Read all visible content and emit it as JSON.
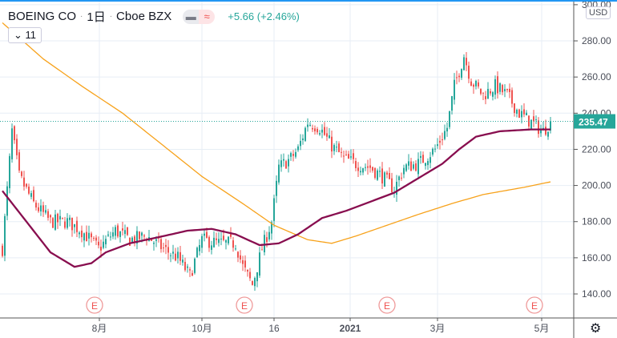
{
  "header": {
    "symbol": "BOEING CO",
    "interval": "1日",
    "exchange": "Cboe BZX",
    "change": "+5.66 (+2.46%)",
    "indicator_count": "11",
    "currency": "USD"
  },
  "colors": {
    "up": "#26a69a",
    "down": "#ef5350",
    "ma_fast": "#880e4f",
    "ma_slow": "#f7a21b",
    "grid": "#e7eef5"
  },
  "chart_data": {
    "type": "candlestick",
    "last_price": "235.47",
    "ylim": [
      140,
      300
    ],
    "y_ticks": [
      "300.00",
      "280.00",
      "260.00",
      "240.00",
      "220.00",
      "200.00",
      "180.00",
      "160.00",
      "140.00"
    ],
    "x_ticks": [
      "8月",
      "10月",
      "16",
      "2021",
      "3月",
      "5月"
    ],
    "earnings_markers": [
      "E",
      "E",
      "E",
      "E"
    ],
    "close_waypoints": [
      [
        0,
        165
      ],
      [
        4,
        230
      ],
      [
        7,
        205
      ],
      [
        13,
        190
      ],
      [
        20,
        180
      ],
      [
        27,
        180
      ],
      [
        33,
        175
      ],
      [
        40,
        165
      ],
      [
        47,
        175
      ],
      [
        53,
        170
      ],
      [
        60,
        172
      ],
      [
        67,
        165
      ],
      [
        73,
        160
      ],
      [
        78,
        150
      ],
      [
        83,
        170
      ],
      [
        90,
        168
      ],
      [
        97,
        168
      ],
      [
        100,
        155
      ],
      [
        104,
        145
      ],
      [
        108,
        165
      ],
      [
        112,
        180
      ],
      [
        115,
        210
      ],
      [
        120,
        215
      ],
      [
        123,
        220
      ],
      [
        127,
        235
      ],
      [
        132,
        232
      ],
      [
        137,
        222
      ],
      [
        142,
        215
      ],
      [
        147,
        212
      ],
      [
        153,
        210
      ],
      [
        158,
        205
      ],
      [
        163,
        198
      ],
      [
        167,
        210
      ],
      [
        173,
        212
      ],
      [
        180,
        220
      ],
      [
        185,
        232
      ],
      [
        188,
        255
      ],
      [
        192,
        272
      ],
      [
        195,
        258
      ],
      [
        200,
        250
      ],
      [
        205,
        255
      ],
      [
        210,
        250
      ],
      [
        215,
        240
      ],
      [
        220,
        235
      ],
      [
        225,
        230
      ],
      [
        228,
        235.47
      ]
    ],
    "ma_fast": [
      [
        0,
        197
      ],
      [
        10,
        180
      ],
      [
        20,
        163
      ],
      [
        30,
        155
      ],
      [
        37,
        157
      ],
      [
        43,
        163
      ],
      [
        53,
        168
      ],
      [
        67,
        172
      ],
      [
        77,
        175
      ],
      [
        87,
        176
      ],
      [
        97,
        173
      ],
      [
        107,
        167
      ],
      [
        115,
        168
      ],
      [
        123,
        173
      ],
      [
        133,
        182
      ],
      [
        143,
        186
      ],
      [
        153,
        191
      ],
      [
        163,
        196
      ],
      [
        173,
        204
      ],
      [
        183,
        212
      ],
      [
        190,
        220
      ],
      [
        197,
        227
      ],
      [
        207,
        230
      ],
      [
        220,
        231
      ],
      [
        228,
        231
      ]
    ],
    "ma_slow": [
      [
        0,
        290
      ],
      [
        17,
        270
      ],
      [
        33,
        255
      ],
      [
        50,
        240
      ],
      [
        67,
        222
      ],
      [
        83,
        205
      ],
      [
        100,
        190
      ],
      [
        113,
        178
      ],
      [
        127,
        170
      ],
      [
        137,
        168
      ],
      [
        147,
        172
      ],
      [
        160,
        178
      ],
      [
        173,
        184
      ],
      [
        187,
        190
      ],
      [
        200,
        195
      ],
      [
        217,
        199
      ],
      [
        228,
        202
      ]
    ]
  }
}
